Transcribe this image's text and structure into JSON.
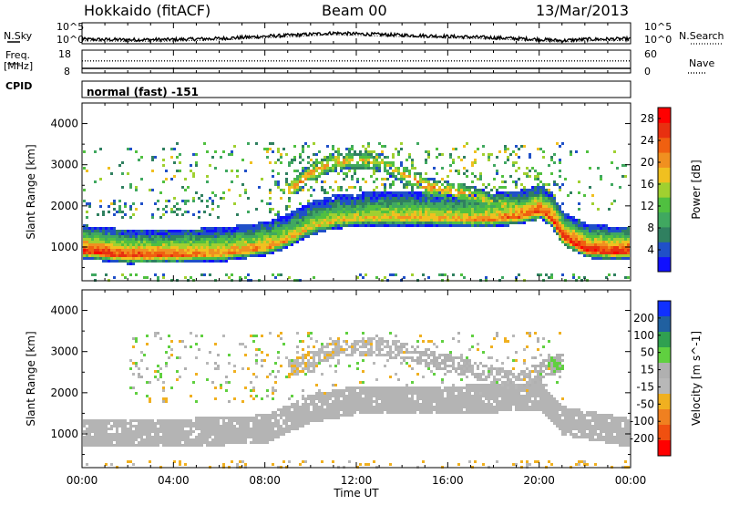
{
  "header": {
    "title": "Hokkaido (fitACF)",
    "beam": "Beam 00",
    "date": "13/Mar/2013"
  },
  "top_panels": {
    "nsky_label": "N.Sky",
    "nsearch_label": "N.Search",
    "noise_ticks": [
      "10^5",
      "10^0"
    ],
    "freq_label_line1": "Freq.",
    "freq_label_line2": "[MHz]",
    "freq_ticks": [
      "18",
      "8"
    ],
    "nave_label": "Nave",
    "nave_ticks": [
      "60",
      "0"
    ],
    "cpid_label": "CPID",
    "cpid_value": "normal (fast) -151"
  },
  "colors": {
    "power_scale": [
      "#1010ff",
      "#2050c8",
      "#308060",
      "#40a860",
      "#50c040",
      "#a0d030",
      "#f0c020",
      "#f09020",
      "#f06010",
      "#e83010",
      "#ff0000"
    ],
    "velocity_scale": [
      "#1030ff",
      "#2060a0",
      "#30a050",
      "#60d040",
      "#b0b0b0",
      "#b8b8b8",
      "#f0b020",
      "#f08020",
      "#f05010",
      "#ff0000"
    ],
    "ground_scatter": "#b4b4b4"
  },
  "chart_data": [
    {
      "type": "heatmap",
      "name": "power",
      "title": "",
      "xlabel": "Time UT",
      "ylabel": "Slant Range [km]",
      "x_ticks": [
        "00:00",
        "04:00",
        "08:00",
        "12:00",
        "16:00",
        "20:00",
        "00:00"
      ],
      "x_range_hours": [
        0,
        24
      ],
      "y_ticks": [
        "1000",
        "2000",
        "3000",
        "4000"
      ],
      "y_range_km": [
        180,
        4500
      ],
      "colorbar_label": "Power [dB]",
      "colorbar_ticks": [
        "4",
        "8",
        "12",
        "16",
        "20",
        "24",
        "28"
      ],
      "colorbar_range": [
        0,
        30
      ],
      "main_band": {
        "times": [
          0,
          2,
          4,
          6,
          8,
          9,
          10,
          11,
          12,
          13,
          14,
          15,
          16,
          17,
          18,
          19,
          20,
          20.5,
          21,
          22,
          23,
          24
        ],
        "center_km": [
          920,
          800,
          820,
          850,
          1000,
          1200,
          1500,
          1650,
          1700,
          1720,
          1720,
          1720,
          1700,
          1680,
          1700,
          1750,
          1900,
          1700,
          1250,
          950,
          900,
          900
        ],
        "peak_power_db": [
          28,
          26,
          24,
          22,
          22,
          20,
          18,
          18,
          18,
          19,
          20,
          20,
          20,
          20,
          22,
          24,
          26,
          26,
          28,
          28,
          28,
          28
        ]
      },
      "upper_arc": {
        "times": [
          9,
          10,
          11,
          12,
          13,
          14,
          15,
          16,
          17,
          18,
          19,
          20
        ],
        "center_km": [
          2400,
          2850,
          3100,
          3150,
          3100,
          2800,
          2500,
          2400,
          2300,
          2100,
          2000,
          1900
        ],
        "peak_power_db": [
          20,
          22,
          20,
          18,
          16,
          20,
          22,
          20,
          18,
          16,
          18,
          20
        ]
      },
      "scatter_cloud_km": [
        1800,
        3600
      ],
      "near_range_clutter_km": [
        180,
        400
      ]
    },
    {
      "type": "heatmap",
      "name": "velocity",
      "title": "",
      "xlabel": "Time UT",
      "ylabel": "Slant Range [km]",
      "x_ticks": [
        "00:00",
        "04:00",
        "08:00",
        "12:00",
        "16:00",
        "20:00",
        "00:00"
      ],
      "x_range_hours": [
        0,
        24
      ],
      "y_ticks": [
        "1000",
        "2000",
        "3000",
        "4000"
      ],
      "y_range_km": [
        180,
        4500
      ],
      "colorbar_label": "Velocity [m s^-1]",
      "colorbar_ticks": [
        "200",
        "100",
        "50",
        "15",
        "-15",
        "-50",
        "-100",
        "-200"
      ],
      "colorbar_range": [
        -250,
        250
      ],
      "ground_scatter_band": {
        "times": [
          0,
          4,
          8,
          10,
          12,
          16,
          20,
          21,
          24
        ],
        "center_km": [
          900,
          900,
          1000,
          1500,
          1700,
          1700,
          1800,
          1200,
          900
        ]
      },
      "upper_region": {
        "times": [
          9,
          11,
          13,
          15,
          17,
          19,
          21
        ],
        "center_km": [
          2600,
          3100,
          3150,
          2900,
          2600,
          2300,
          2800
        ],
        "velocity_ms": [
          -40,
          -30,
          -20,
          20,
          10,
          -10,
          60
        ]
      }
    },
    {
      "type": "line",
      "name": "noise",
      "series_meaning": "N.Sky solid, N.Search dotted",
      "ylim_log10": [
        0,
        5
      ],
      "x_range_hours": [
        0,
        24
      ],
      "times": [
        0,
        2,
        4,
        6,
        8,
        10,
        11,
        12,
        14,
        16,
        18,
        20,
        21,
        22,
        24
      ],
      "log10_nsky": [
        0.9,
        0.8,
        0.85,
        1.1,
        1.6,
        2.1,
        2.4,
        2.2,
        1.9,
        1.6,
        1.3,
        0.9,
        0.6,
        0.9,
        1.0
      ]
    },
    {
      "type": "line",
      "name": "freq_nave",
      "x_range_hours": [
        0,
        24
      ],
      "freq_mhz": 10.0,
      "nave_value": 22,
      "ylim_freq": [
        8,
        18
      ],
      "ylim_nave": [
        0,
        60
      ]
    }
  ]
}
